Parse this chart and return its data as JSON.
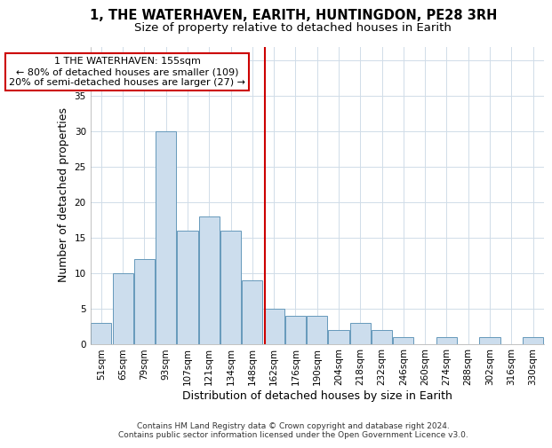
{
  "title": "1, THE WATERHAVEN, EARITH, HUNTINGDON, PE28 3RH",
  "subtitle": "Size of property relative to detached houses in Earith",
  "xlabel": "Distribution of detached houses by size in Earith",
  "ylabel": "Number of detached properties",
  "categories": [
    "51sqm",
    "65sqm",
    "79sqm",
    "93sqm",
    "107sqm",
    "121sqm",
    "134sqm",
    "148sqm",
    "162sqm",
    "176sqm",
    "190sqm",
    "204sqm",
    "218sqm",
    "232sqm",
    "246sqm",
    "260sqm",
    "274sqm",
    "288sqm",
    "302sqm",
    "316sqm",
    "330sqm"
  ],
  "values": [
    3,
    10,
    12,
    30,
    16,
    18,
    16,
    9,
    5,
    4,
    4,
    2,
    3,
    2,
    1,
    0,
    1,
    0,
    1,
    0,
    1
  ],
  "bar_color": "#ccdded",
  "bar_edge_color": "#6699bb",
  "vline_color": "#cc0000",
  "annotation_text": "1 THE WATERHAVEN: 155sqm\n← 80% of detached houses are smaller (109)\n20% of semi-detached houses are larger (27) →",
  "annotation_box_color": "#ffffff",
  "annotation_box_edge_color": "#cc0000",
  "ylim": [
    0,
    42
  ],
  "yticks": [
    0,
    5,
    10,
    15,
    20,
    25,
    30,
    35,
    40
  ],
  "footer": "Contains HM Land Registry data © Crown copyright and database right 2024.\nContains public sector information licensed under the Open Government Licence v3.0.",
  "background_color": "#ffffff",
  "plot_background_color": "#ffffff",
  "title_fontsize": 10.5,
  "subtitle_fontsize": 9.5,
  "axis_label_fontsize": 9,
  "tick_fontsize": 7.5,
  "annotation_fontsize": 8,
  "footer_fontsize": 6.5,
  "vline_pos": 7.575
}
